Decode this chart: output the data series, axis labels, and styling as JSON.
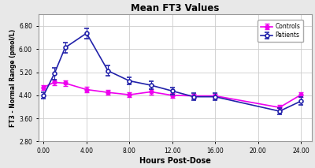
{
  "title": "Mean FT3 Values",
  "xlabel": "Hours Post-Dose",
  "ylabel": "FT3 - Normal Range (pmol/L)",
  "xlim": [
    -0.5,
    25
  ],
  "ylim": [
    2.8,
    7.2
  ],
  "yticks": [
    2.8,
    3.6,
    4.4,
    5.2,
    6.0,
    6.8
  ],
  "xticks": [
    0.0,
    4.0,
    8.0,
    12.0,
    16.0,
    20.0,
    24.0
  ],
  "xtick_labels": [
    "0.00",
    "4.00",
    "8.00",
    "12.00",
    "16.00",
    "20.00",
    "24.00"
  ],
  "patients_x": [
    0,
    1,
    2,
    4,
    6,
    8,
    10,
    12,
    14,
    16,
    22,
    24
  ],
  "patients_y": [
    4.4,
    5.15,
    6.05,
    6.55,
    5.25,
    4.9,
    4.75,
    4.55,
    4.35,
    4.35,
    3.85,
    4.2
  ],
  "patients_yerr": [
    0.1,
    0.2,
    0.18,
    0.18,
    0.18,
    0.13,
    0.13,
    0.13,
    0.13,
    0.13,
    0.12,
    0.13
  ],
  "controls_x": [
    0,
    1,
    2,
    4,
    6,
    8,
    10,
    12,
    14,
    16,
    22,
    24
  ],
  "controls_y": [
    4.68,
    4.85,
    4.82,
    4.6,
    4.5,
    4.42,
    4.52,
    4.4,
    4.38,
    4.38,
    3.98,
    4.42
  ],
  "controls_yerr": [
    0.08,
    0.1,
    0.1,
    0.09,
    0.09,
    0.09,
    0.09,
    0.09,
    0.08,
    0.08,
    0.09,
    0.09
  ],
  "patients_color": "#2222aa",
  "controls_color": "#ee00ee",
  "bg_color": "#e8e8e8",
  "plot_bg_color": "#ffffff",
  "grid_color": "#cccccc",
  "legend_bg": "#ffffff"
}
